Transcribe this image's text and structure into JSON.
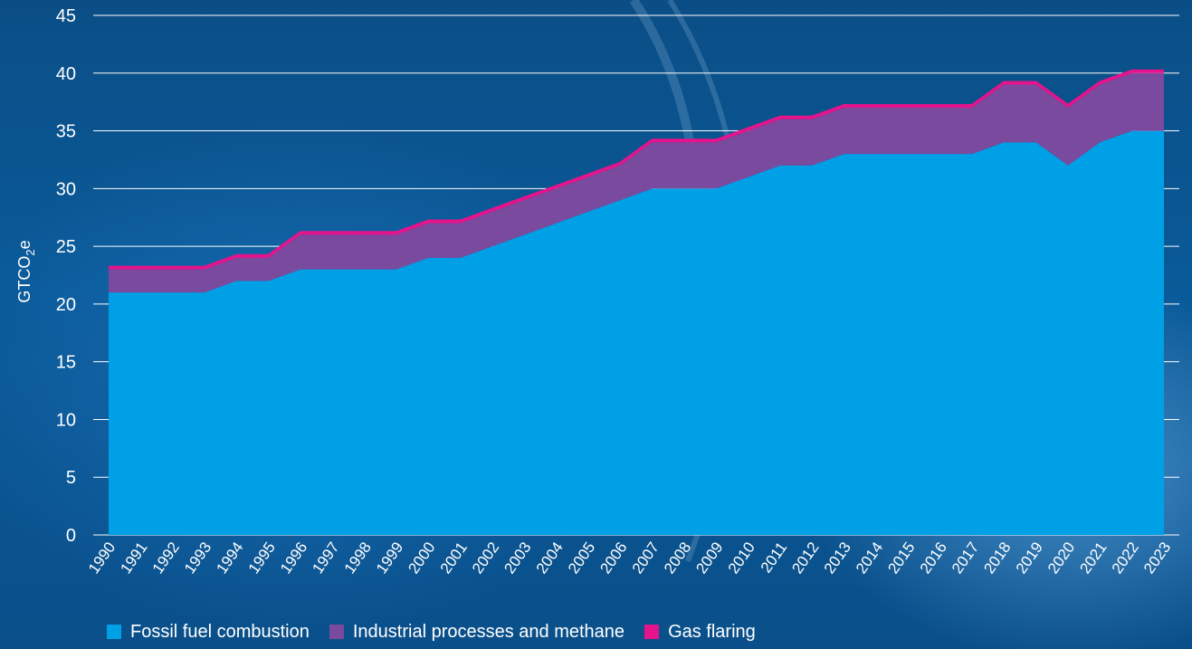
{
  "chart_data": {
    "type": "area",
    "stacked": true,
    "title": "",
    "xlabel": "",
    "ylabel": "GTCO2e",
    "ylabel_parts": {
      "main": "GTCO",
      "sub": "2",
      "tail": "e"
    },
    "ylim": [
      0,
      45
    ],
    "yticks": [
      0,
      5,
      10,
      15,
      20,
      25,
      30,
      35,
      40,
      45
    ],
    "grid": "horizontal",
    "legend_position": "bottom-left",
    "x": [
      1990,
      1991,
      1992,
      1993,
      1994,
      1995,
      1996,
      1997,
      1998,
      1999,
      2000,
      2001,
      2002,
      2003,
      2004,
      2005,
      2006,
      2007,
      2008,
      2009,
      2010,
      2011,
      2012,
      2013,
      2014,
      2015,
      2016,
      2017,
      2018,
      2019,
      2020,
      2021,
      2022,
      2023
    ],
    "series": [
      {
        "name": "Fossil fuel combustion",
        "color": "#00a0e6",
        "values": [
          21,
          21,
          21,
          21,
          22,
          22,
          23,
          23,
          23,
          23,
          24,
          24,
          25,
          26,
          27,
          28,
          29,
          30,
          30,
          30,
          31,
          32,
          32,
          33,
          33,
          33,
          33,
          33,
          34,
          34,
          32,
          34,
          35,
          35
        ]
      },
      {
        "name": "Industrial processes and methane",
        "color": "#7a4a9e",
        "values": [
          2,
          2,
          2,
          2,
          2,
          2,
          3,
          3,
          3,
          3,
          3,
          3,
          3,
          3,
          3,
          3,
          3,
          4,
          4,
          4,
          4,
          4,
          4,
          4,
          4,
          4,
          4,
          4,
          5,
          5,
          5,
          5,
          5,
          5
        ]
      },
      {
        "name": "Gas flaring",
        "color": "#e5138c",
        "values": [
          0.2,
          0.2,
          0.2,
          0.2,
          0.2,
          0.2,
          0.2,
          0.2,
          0.2,
          0.2,
          0.2,
          0.2,
          0.2,
          0.2,
          0.2,
          0.2,
          0.2,
          0.2,
          0.2,
          0.2,
          0.2,
          0.2,
          0.2,
          0.2,
          0.2,
          0.2,
          0.2,
          0.2,
          0.2,
          0.2,
          0.2,
          0.2,
          0.2,
          0.2
        ]
      }
    ]
  }
}
